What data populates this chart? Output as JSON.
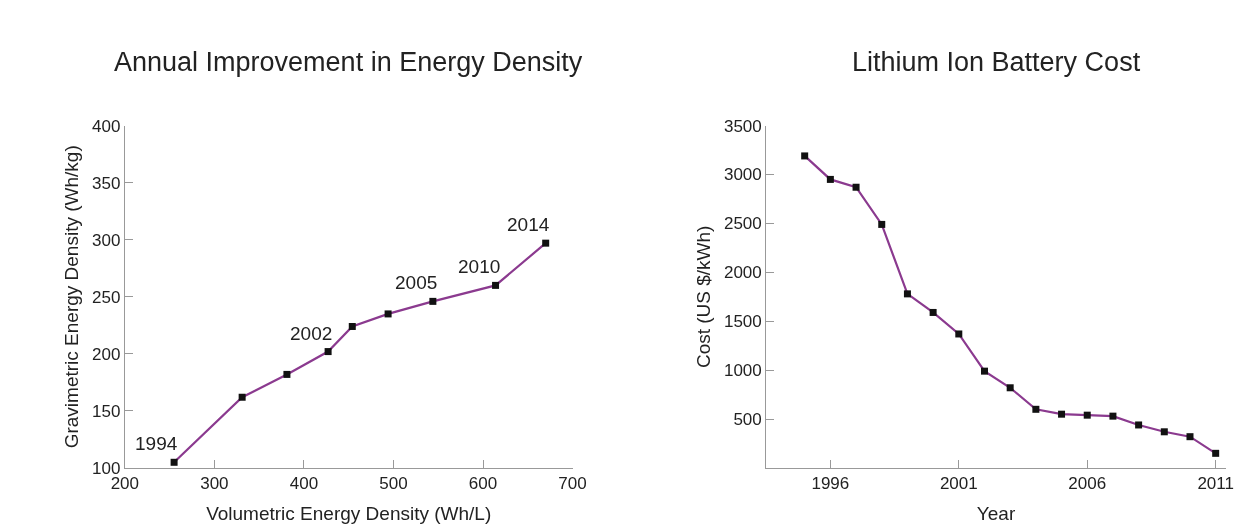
{
  "chart_data": [
    {
      "type": "line",
      "title": "Annual Improvement in Energy Density",
      "xlabel": "Volumetric Energy Density (Wh/L)",
      "ylabel": "Gravimetric Energy Density (Wh/kg)",
      "x": [
        255,
        331,
        381,
        427,
        454,
        494,
        544,
        614,
        670
      ],
      "series": [
        {
          "color": "#8b3a8f",
          "values": [
            105,
            162,
            182,
            202,
            224,
            235,
            246,
            260,
            297
          ]
        }
      ],
      "xlim": [
        200,
        700
      ],
      "xticks": [
        200,
        300,
        400,
        500,
        600,
        700
      ],
      "ylim": [
        100,
        400
      ],
      "yticks": [
        100,
        150,
        200,
        250,
        300,
        350,
        400
      ],
      "marker": "square",
      "grid": false,
      "annotations": [
        {
          "text": "1994",
          "x": 255,
          "y": 105
        },
        {
          "text": "2002",
          "x": 427,
          "y": 202
        },
        {
          "text": "2005",
          "x": 544,
          "y": 246
        },
        {
          "text": "2010",
          "x": 614,
          "y": 260
        },
        {
          "text": "2014",
          "x": 670,
          "y": 297
        }
      ]
    },
    {
      "type": "line",
      "title": "Lithium Ion Battery Cost",
      "xlabel": "Year",
      "ylabel": "Cost (US $/kWh)",
      "x": [
        1995,
        1996,
        1997,
        1998,
        1999,
        2000,
        2001,
        2002,
        2003,
        2004,
        2005,
        2006,
        2007,
        2008,
        2009,
        2010,
        2011
      ],
      "series": [
        {
          "color": "#8b3a8f",
          "values": [
            3190,
            2950,
            2870,
            2490,
            1780,
            1590,
            1370,
            990,
            820,
            600,
            550,
            540,
            530,
            440,
            370,
            320,
            150
          ]
        }
      ],
      "xlim": [
        1993.5,
        2011.4
      ],
      "xticks": [
        1996,
        2001,
        2006,
        2011
      ],
      "ylim": [
        0,
        3500
      ],
      "yticks": [
        500,
        1000,
        1500,
        2000,
        2500,
        3000,
        3500
      ],
      "marker": "square",
      "grid": false
    }
  ]
}
